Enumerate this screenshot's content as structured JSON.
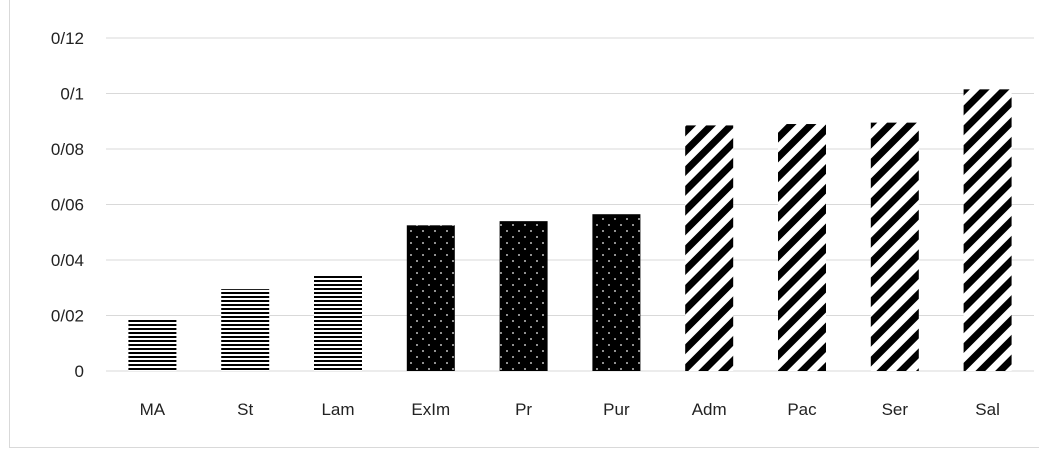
{
  "chart_data": {
    "type": "bar",
    "title": "",
    "xlabel": "",
    "ylabel": "",
    "categories": [
      "MA",
      "St",
      "Lam",
      "ExIm",
      "Pr",
      "Pur",
      "Adm",
      "Pac",
      "Ser",
      "Sal"
    ],
    "values": [
      0.019,
      0.0295,
      0.0345,
      0.0525,
      0.054,
      0.0565,
      0.0885,
      0.089,
      0.0895,
      0.1015
    ],
    "patterns": [
      "horizontal-stripes",
      "horizontal-stripes",
      "horizontal-stripes",
      "dots",
      "dots",
      "dots",
      "diagonal-stripes",
      "diagonal-stripes",
      "diagonal-stripes",
      "diagonal-stripes"
    ],
    "ylim": [
      0,
      0.12
    ],
    "yticks": [
      0,
      0.02,
      0.04,
      0.06,
      0.08,
      0.1,
      0.12
    ],
    "ytick_labels": [
      "0",
      "0/02",
      "0/04",
      "0/06",
      "0/08",
      "0/1",
      "0/12"
    ],
    "grid": true,
    "legend": "none",
    "colors": {
      "bar": "#000000",
      "gridline": "#d9d9d9",
      "text": "#222222"
    }
  }
}
